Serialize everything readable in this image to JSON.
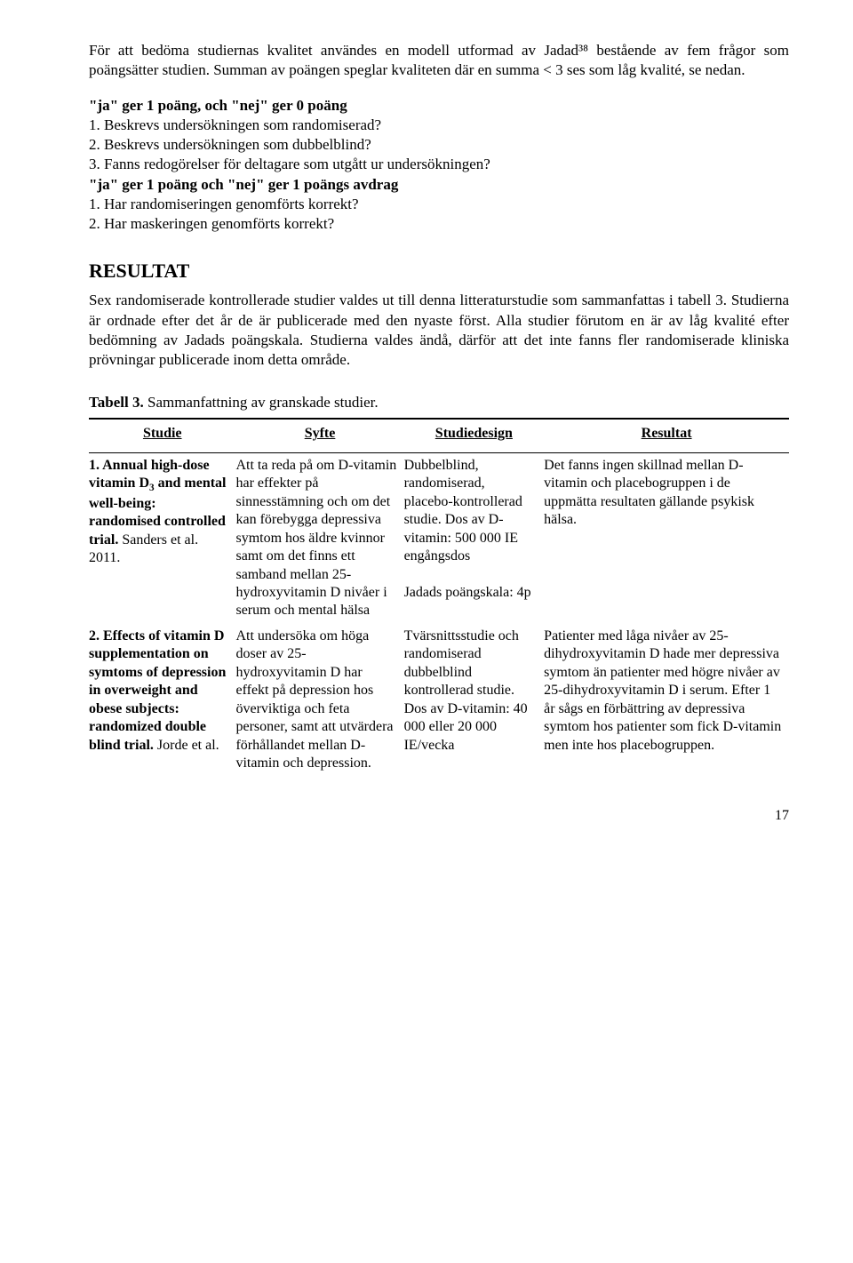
{
  "intro": {
    "p1": "För att bedöma studiernas kvalitet användes en modell utformad av Jadad³⁸ bestående av fem frågor som poängsätter studien. Summan av poängen speglar kvaliteten där en summa < 3 ses som låg kvalité, se nedan.",
    "rule1_head": "\"ja\" ger 1 poäng, och \"nej\" ger 0 poäng",
    "rule1_1": "1. Beskrevs undersökningen som randomiserad?",
    "rule1_2": "2. Beskrevs undersökningen som dubbelblind?",
    "rule1_3": "3. Fanns redogörelser för deltagare som utgått ur undersökningen?",
    "rule2_head": "\"ja\" ger 1 poäng och \"nej\" ger 1 poängs avdrag",
    "rule2_1": "1. Har randomiseringen genomförts korrekt?",
    "rule2_2": "2. Har maskeringen genomförts korrekt?"
  },
  "resultat": {
    "heading": "RESULTAT",
    "body": "Sex randomiserade kontrollerade studier valdes ut till denna litteraturstudie som sammanfattas i tabell 3. Studierna är ordnade efter det år de är publicerade med den nyaste först. Alla studier förutom en är av låg kvalité efter bedömning av Jadads poängskala. Studierna valdes ändå, därför att det inte fanns fler randomiserade kliniska prövningar publicerade inom detta område."
  },
  "table": {
    "caption_label": "Tabell 3.",
    "caption_rest": " Sammanfattning av granskade studier.",
    "headers": {
      "studie": "Studie",
      "syfte": "Syfte",
      "design": "Studiedesign",
      "result": "Resultat"
    },
    "rows": [
      {
        "studie_html": "<b>1. Annual high-dose vitamin D<span class='sub'>3</span> and mental well-being: randomised controlled trial.</b> Sanders et al. 2011.",
        "syfte": "Att ta reda på om D-vitamin har effekter på sinnesstämning och om det kan förebygga depressiva symtom hos äldre kvinnor samt om det finns ett samband mellan 25-hydroxyvitamin D nivåer i serum och mental hälsa",
        "design": "Dubbelblind, randomiserad, placebo-kontrollerad studie. Dos av D-vitamin: 500 000 IE engångsdos\n\nJadads poängskala: 4p",
        "result": "Det fanns ingen skillnad mellan D-vitamin och placebogruppen i de uppmätta resultaten gällande psykisk hälsa."
      },
      {
        "studie_html": "<b>2. Effects of vitamin D supplementation on symtoms of depression in overweight and obese subjects: randomized double blind trial.</b> Jorde et al.",
        "syfte": "Att undersöka om höga doser av 25-hydroxyvitamin D har effekt på depression hos överviktiga och feta personer, samt att utvärdera förhållandet mellan D-vitamin och depression.",
        "design": "Tvärsnittsstudie och randomiserad dubbelblind kontrollerad studie. Dos av D-vitamin: 40 000 eller 20 000 IE/vecka",
        "result": "Patienter med låga nivåer av 25-dihydroxyvitamin D hade mer depressiva symtom än patienter med högre nivåer av 25-dihydroxyvitamin D i serum. Efter 1 år sågs en förbättring av depressiva symtom hos patienter som fick D-vitamin men inte hos placebogruppen."
      }
    ]
  },
  "pagenum": "17"
}
